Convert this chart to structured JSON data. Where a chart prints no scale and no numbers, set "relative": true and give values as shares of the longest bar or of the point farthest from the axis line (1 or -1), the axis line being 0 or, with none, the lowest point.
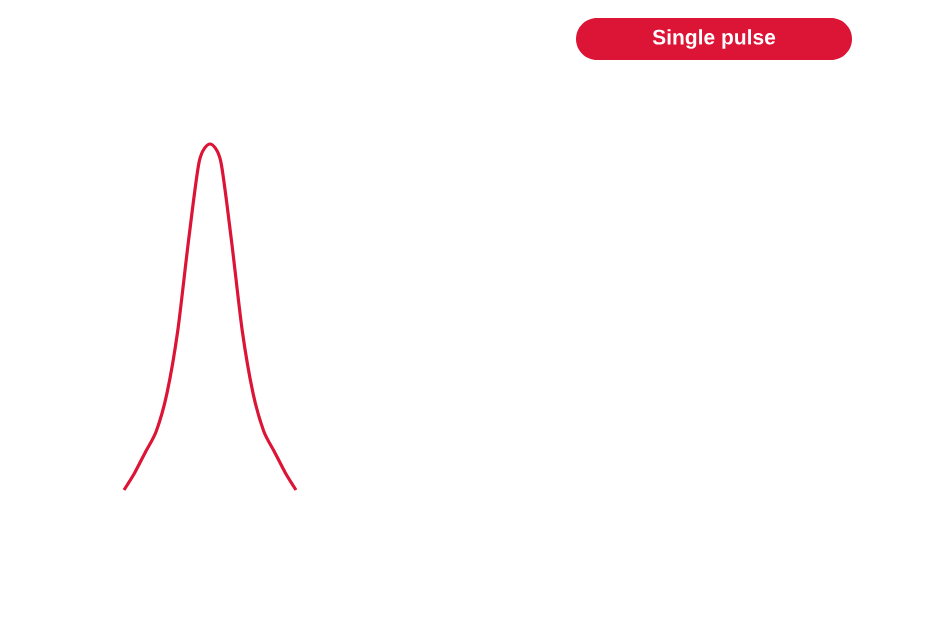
{
  "chart_data": {
    "type": "line",
    "title": "Single pulse",
    "relative": true,
    "marker": "none",
    "line_style": "solid",
    "categories": [
      null,
      null,
      null,
      null,
      null,
      null,
      null,
      null,
      null,
      null,
      null,
      null,
      null,
      null,
      null,
      null,
      null
    ],
    "series": [
      {
        "color": "#dc1537",
        "values": [
          0,
          0.05,
          0.11,
          0.17,
          0.28,
          0.46,
          0.72,
          0.95,
          1,
          0.95,
          0.72,
          0.46,
          0.28,
          0.17,
          0.11,
          0.05,
          0
        ]
      }
    ]
  }
}
